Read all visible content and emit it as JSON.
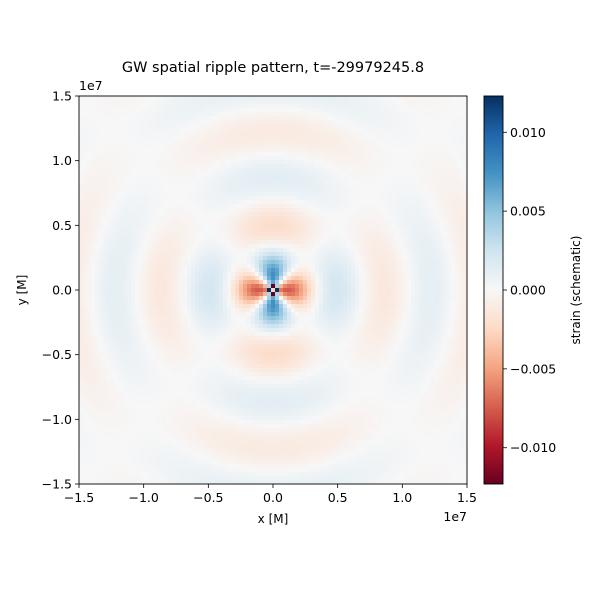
{
  "chart_data": {
    "type": "heatmap",
    "title": "GW spatial ripple pattern, t=-29979245.8",
    "xlabel": "x [M]",
    "ylabel": "y [M]",
    "x_offset_label": "1e7",
    "y_offset_label": "1e7",
    "xlim": [
      -15000000,
      15000000
    ],
    "ylim": [
      -15000000,
      15000000
    ],
    "x_ticks": [
      -15000000,
      -10000000,
      -5000000,
      0,
      5000000,
      10000000,
      15000000
    ],
    "x_tick_labels": [
      "−1.5",
      "−1.0",
      "−0.5",
      "0.0",
      "0.5",
      "1.0",
      "1.5"
    ],
    "y_ticks": [
      -15000000,
      -10000000,
      -5000000,
      0,
      5000000,
      10000000,
      15000000
    ],
    "y_tick_labels": [
      "−1.5",
      "−1.0",
      "−0.5",
      "0.0",
      "0.5",
      "1.0",
      "1.5"
    ],
    "colorbar": {
      "label": "strain (schematic)",
      "colormap": "RdBu",
      "vmin": -0.0123,
      "vmax": 0.0123,
      "ticks": [
        0.01,
        0.005,
        0.0,
        -0.005,
        -0.01
      ],
      "tick_labels": [
        "0.010",
        "0.005",
        "0.000",
        "−0.005",
        "−0.010"
      ]
    },
    "field": {
      "pattern": "quadrupole ripple, strain proportional to cos(2*theta)",
      "wavelength": 7000000,
      "quadrant_sign": {
        "along_x_axis": "negative (red)",
        "along_y_axis": "positive (blue)"
      },
      "center_peak": 0.0123
    },
    "grid": false,
    "colors": {
      "negative_extreme": "#67001f",
      "positive_extreme": "#053061",
      "neutral": "#f7f7f7"
    }
  }
}
